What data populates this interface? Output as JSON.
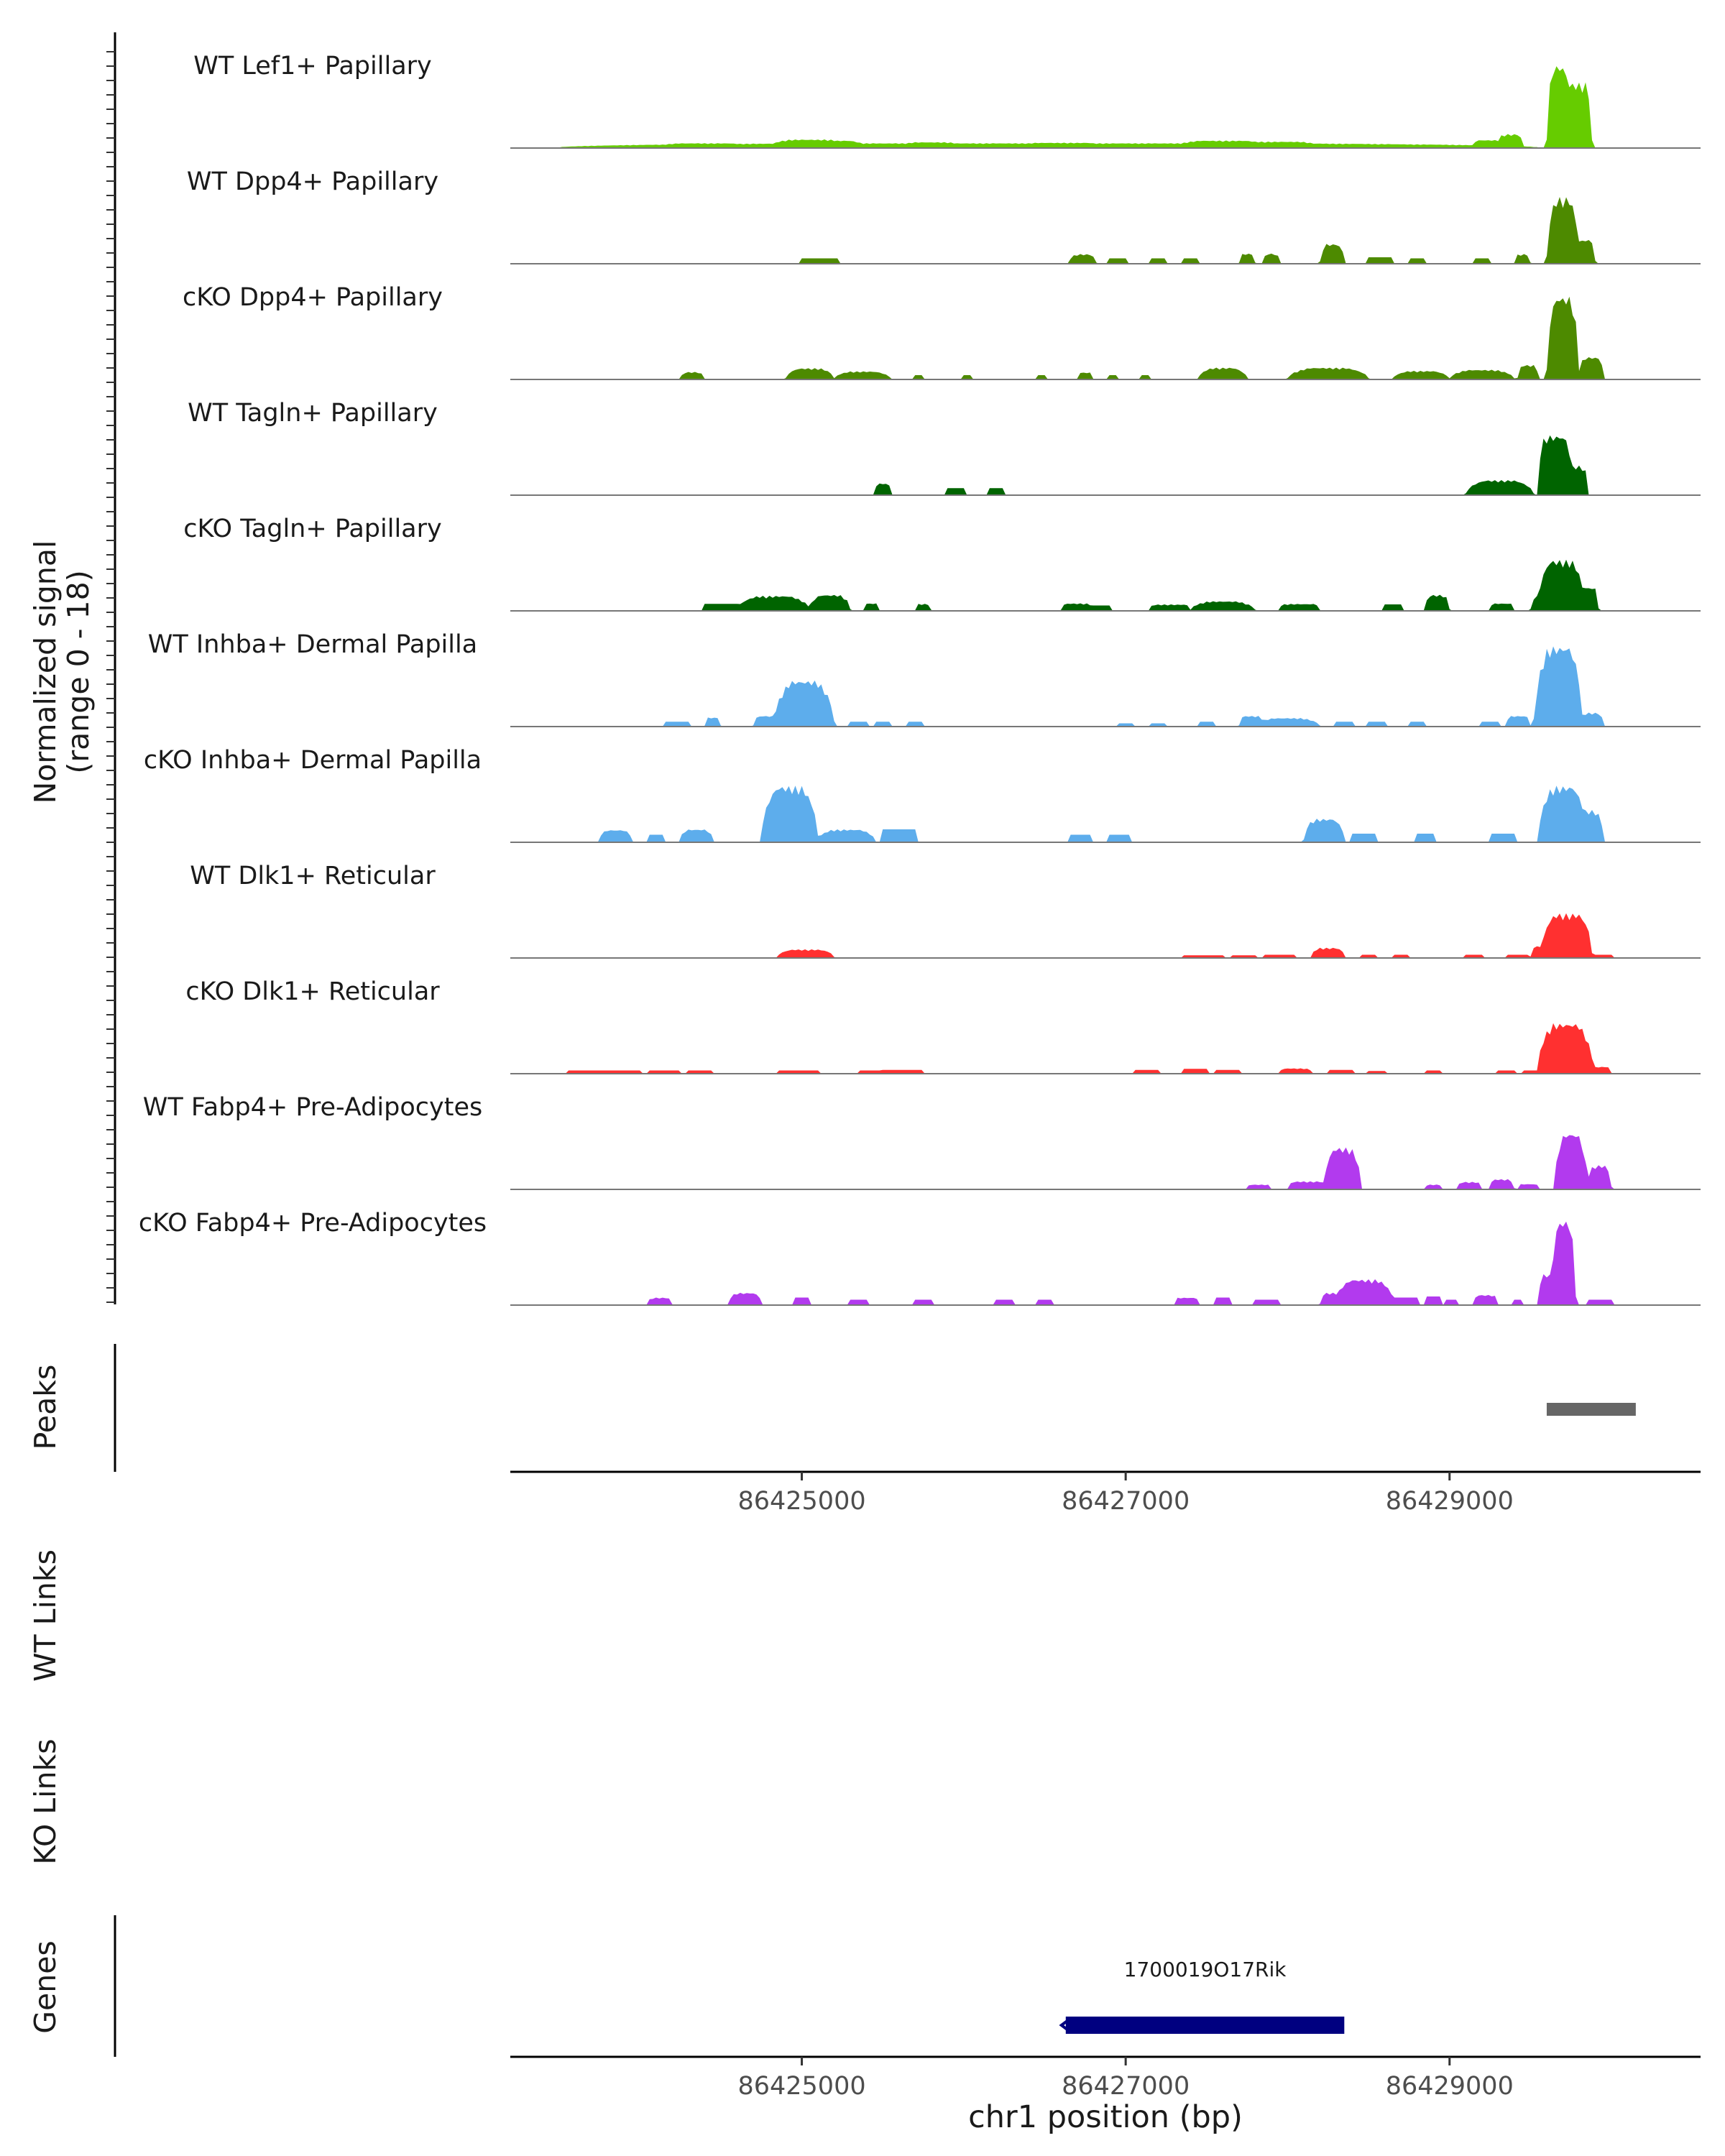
{
  "chart_data": {
    "type": "area",
    "title": "",
    "signal_ylabel_line1": "Normalized signal",
    "signal_ylabel_line2": "(range 0 - 18)",
    "ylim": [
      0,
      18
    ],
    "xlabel": "chr1 position (bp)",
    "xlim": [
      86423200,
      86430550
    ],
    "x_ticks": [
      86425000,
      86427000,
      86429000
    ],
    "x_tick_labels": [
      "86425000",
      "86427000",
      "86429000"
    ],
    "tracks": [
      {
        "name": "WT Lef1+ Papillary",
        "color": "#66CC00",
        "features": [
          [
            86423500,
            86429550,
            0.9,
            0.5
          ],
          [
            86424100,
            86424700,
            0.9,
            0.4
          ],
          [
            86424800,
            86425300,
            1.6,
            0.5
          ],
          [
            86425000,
            86425400,
            1.4,
            0.5
          ],
          [
            86425600,
            86426000,
            1.1,
            0.4
          ],
          [
            86426300,
            86426900,
            1.0,
            0.4
          ],
          [
            86427300,
            86427900,
            1.4,
            0.5
          ],
          [
            86427700,
            86428200,
            1.2,
            0.4
          ],
          [
            86429150,
            86429350,
            1.5,
            0.2
          ],
          [
            86429300,
            86429450,
            2.6,
            0.3
          ],
          [
            86429600,
            86429750,
            15.5,
            0.55
          ],
          [
            86429700,
            86429880,
            12.2,
            0.3
          ]
        ]
      },
      {
        "name": "WT Dpp4+ Papillary",
        "color": "#4D8A00",
        "features": [
          [
            86425000,
            86425220,
            1.0,
            0.0
          ],
          [
            86426650,
            86426820,
            1.8,
            0.5
          ],
          [
            86426900,
            86427000,
            1.0,
            0.0
          ],
          [
            86427150,
            86427250,
            1.0,
            0.0
          ],
          [
            86427350,
            86427450,
            1.0,
            0.0
          ],
          [
            86427700,
            86427800,
            1.9,
            0.4
          ],
          [
            86427850,
            86427950,
            1.9,
            0.4
          ],
          [
            86428200,
            86428350,
            3.7,
            0.5
          ],
          [
            86428500,
            86428650,
            1.2,
            0.0
          ],
          [
            86428750,
            86428850,
            1.0,
            0.0
          ],
          [
            86429150,
            86429250,
            1.0,
            0.0
          ],
          [
            86429400,
            86429500,
            1.8,
            0.4
          ],
          [
            86429600,
            86429800,
            12.4,
            0.6
          ],
          [
            86429780,
            86429900,
            4.5,
            0.3
          ]
        ]
      },
      {
        "name": "cKO Dpp4+ Papillary",
        "color": "#4D8A00",
        "features": [
          [
            86424250,
            86424400,
            1.4,
            0.5
          ],
          [
            86424900,
            86425200,
            2.1,
            0.6
          ],
          [
            86425200,
            86425550,
            1.5,
            0.6
          ],
          [
            86425700,
            86425750,
            0.8,
            0.0
          ],
          [
            86426000,
            86426050,
            0.8,
            0.0
          ],
          [
            86426450,
            86426500,
            0.8,
            0.0
          ],
          [
            86426700,
            86426800,
            1.3,
            0.3
          ],
          [
            86426900,
            86426950,
            0.8,
            0.0
          ],
          [
            86427100,
            86427150,
            0.8,
            0.0
          ],
          [
            86427450,
            86427750,
            2.2,
            0.6
          ],
          [
            86428000,
            86428500,
            2.2,
            0.6
          ],
          [
            86428650,
            86429000,
            1.6,
            0.6
          ],
          [
            86429000,
            86429400,
            1.8,
            0.6
          ],
          [
            86429420,
            86429550,
            2.7,
            0.4
          ],
          [
            86429600,
            86429800,
            15.5,
            0.55
          ],
          [
            86429800,
            86429950,
            4.2,
            0.4
          ]
        ]
      },
      {
        "name": "WT Tagln+ Papillary",
        "color": "#006400",
        "features": [
          [
            86425450,
            86425550,
            2.2,
            0.3
          ],
          [
            86425900,
            86426000,
            1.3,
            0.0
          ],
          [
            86426150,
            86426250,
            1.3,
            0.0
          ],
          [
            86429100,
            86429520,
            2.8,
            0.6
          ],
          [
            86429550,
            86429750,
            11.2,
            0.3
          ],
          [
            86429650,
            86429850,
            5.5,
            0.2
          ]
        ]
      },
      {
        "name": "cKO Tagln+ Papillary",
        "color": "#006400",
        "features": [
          [
            86424400,
            86424600,
            1.3,
            0.0
          ],
          [
            86424600,
            86425050,
            2.8,
            0.6
          ],
          [
            86425050,
            86425300,
            3.0,
            0.5
          ],
          [
            86425380,
            86425480,
            1.4,
            0.2
          ],
          [
            86425700,
            86425800,
            1.3,
            0.2
          ],
          [
            86426600,
            86426800,
            1.4,
            0.3
          ],
          [
            86426800,
            86426900,
            1.0,
            0.0
          ],
          [
            86427150,
            86427400,
            1.2,
            0.2
          ],
          [
            86427400,
            86427800,
            1.8,
            0.6
          ],
          [
            86427950,
            86428200,
            1.3,
            0.2
          ],
          [
            86428600,
            86428700,
            1.2,
            0.0
          ],
          [
            86428850,
            86429000,
            3.0,
            0.4
          ],
          [
            86429250,
            86429400,
            1.4,
            0.2
          ],
          [
            86429500,
            86429650,
            2.8,
            0.4
          ],
          [
            86429550,
            86429830,
            9.5,
            0.5
          ],
          [
            86429800,
            86429920,
            4.4,
            0.3
          ]
        ]
      },
      {
        "name": "WT Inhba+ Dermal Papilla",
        "color": "#5DADEC",
        "features": [
          [
            86424150,
            86424300,
            0.9,
            0.0
          ],
          [
            86424400,
            86424500,
            1.7,
            0.3
          ],
          [
            86424700,
            86424900,
            2.0,
            0.3
          ],
          [
            86424830,
            86425200,
            8.6,
            0.6
          ],
          [
            86425300,
            86425400,
            0.9,
            0.0
          ],
          [
            86425450,
            86425550,
            0.9,
            0.0
          ],
          [
            86425650,
            86425750,
            0.9,
            0.0
          ],
          [
            86426950,
            86427050,
            0.6,
            0.0
          ],
          [
            86427150,
            86427250,
            0.6,
            0.0
          ],
          [
            86427450,
            86427550,
            0.9,
            0.0
          ],
          [
            86427700,
            86427850,
            2.0,
            0.3
          ],
          [
            86427800,
            86428200,
            1.6,
            0.6
          ],
          [
            86428300,
            86428400,
            0.9,
            0.0
          ],
          [
            86428500,
            86428600,
            0.9,
            0.0
          ],
          [
            86428750,
            86428850,
            0.9,
            0.0
          ],
          [
            86429200,
            86429300,
            0.9,
            0.0
          ],
          [
            86429350,
            86429500,
            2.0,
            0.3
          ],
          [
            86429500,
            86429750,
            2.0,
            0.4
          ],
          [
            86429530,
            86429820,
            15.0,
            0.55
          ],
          [
            86429800,
            86429950,
            2.6,
            0.4
          ]
        ]
      },
      {
        "name": "cKO Inhba+ Dermal Papilla",
        "color": "#5DADEC",
        "features": [
          [
            86423750,
            86423950,
            2.3,
            0.4
          ],
          [
            86424050,
            86424150,
            1.4,
            0.0
          ],
          [
            86424250,
            86424450,
            2.4,
            0.4
          ],
          [
            86424750,
            86425100,
            10.5,
            0.6
          ],
          [
            86425100,
            86425450,
            2.4,
            0.5
          ],
          [
            86425500,
            86425700,
            2.4,
            0.0
          ],
          [
            86426650,
            86426780,
            1.4,
            0.0
          ],
          [
            86426900,
            86427020,
            1.4,
            0.0
          ],
          [
            86428100,
            86428350,
            4.4,
            0.5
          ],
          [
            86428400,
            86428550,
            1.6,
            0.0
          ],
          [
            86428800,
            86428900,
            1.6,
            0.0
          ],
          [
            86429250,
            86429400,
            1.6,
            0.0
          ],
          [
            86429550,
            86429850,
            10.5,
            0.6
          ],
          [
            86429780,
            86429950,
            6.0,
            0.5
          ]
        ]
      },
      {
        "name": "WT Dlk1+ Reticular",
        "color": "#FF3030",
        "features": [
          [
            86424850,
            86425200,
            1.6,
            0.5
          ],
          [
            86427350,
            86427600,
            0.5,
            0.0
          ],
          [
            86427650,
            86427800,
            0.5,
            0.0
          ],
          [
            86427850,
            86428050,
            0.6,
            0.0
          ],
          [
            86428150,
            86428350,
            1.9,
            0.4
          ],
          [
            86428450,
            86428550,
            0.6,
            0.0
          ],
          [
            86428650,
            86428750,
            0.6,
            0.0
          ],
          [
            86429100,
            86429200,
            0.6,
            0.0
          ],
          [
            86429350,
            86429480,
            0.6,
            0.0
          ],
          [
            86429500,
            86429620,
            2.2,
            0.3
          ],
          [
            86429570,
            86429880,
            8.3,
            0.5
          ],
          [
            86429900,
            86430000,
            0.6,
            0.0
          ]
        ]
      },
      {
        "name": "cKO Dlk1+ Reticular",
        "color": "#FF3030",
        "features": [
          [
            86423550,
            86423750,
            0.6,
            0.0
          ],
          [
            86423750,
            86424000,
            0.6,
            0.0
          ],
          [
            86424050,
            86424250,
            0.6,
            0.0
          ],
          [
            86424300,
            86424450,
            0.6,
            0.0
          ],
          [
            86424850,
            86425100,
            0.6,
            0.0
          ],
          [
            86425350,
            86425500,
            0.6,
            0.0
          ],
          [
            86425500,
            86425750,
            0.7,
            0.0
          ],
          [
            86427050,
            86427200,
            0.7,
            0.0
          ],
          [
            86427350,
            86427500,
            0.9,
            0.0
          ],
          [
            86427550,
            86427700,
            0.7,
            0.0
          ],
          [
            86427950,
            86428150,
            1.0,
            0.3
          ],
          [
            86428250,
            86428400,
            0.7,
            0.0
          ],
          [
            86428500,
            86428600,
            0.5,
            0.0
          ],
          [
            86428850,
            86428950,
            0.6,
            0.0
          ],
          [
            86429300,
            86429400,
            0.6,
            0.0
          ],
          [
            86429450,
            86429600,
            0.6,
            0.0
          ],
          [
            86429650,
            86429800,
            1.0,
            0.3
          ],
          [
            86429800,
            86429900,
            3.3,
            0.3
          ],
          [
            86429550,
            86429880,
            9.4,
            0.5
          ],
          [
            86429880,
            86430000,
            1.3,
            0.3
          ]
        ]
      },
      {
        "name": "WT Fabp4+ Pre-Adipocytes",
        "color": "#B23AEE",
        "features": [
          [
            86427750,
            86427900,
            0.9,
            0.2
          ],
          [
            86428000,
            86428250,
            1.5,
            0.3
          ],
          [
            86428230,
            86428450,
            7.8,
            0.5
          ],
          [
            86428850,
            86428950,
            0.9,
            0.2
          ],
          [
            86429050,
            86429200,
            1.4,
            0.3
          ],
          [
            86429250,
            86429400,
            1.9,
            0.3
          ],
          [
            86429420,
            86429550,
            1.0,
            0.2
          ],
          [
            86429650,
            86429850,
            10.5,
            0.6
          ],
          [
            86429850,
            86430000,
            4.5,
            0.5
          ]
        ]
      },
      {
        "name": "cKO Fabp4+ Pre-Adipocytes",
        "color": "#B23AEE",
        "features": [
          [
            86424050,
            86424200,
            1.4,
            0.3
          ],
          [
            86424550,
            86424750,
            2.3,
            0.4
          ],
          [
            86424950,
            86425050,
            1.4,
            0.0
          ],
          [
            86425300,
            86425400,
            1.0,
            0.0
          ],
          [
            86425700,
            86425800,
            1.0,
            0.0
          ],
          [
            86426200,
            86426300,
            1.0,
            0.0
          ],
          [
            86426450,
            86426550,
            1.0,
            0.0
          ],
          [
            86427300,
            86427450,
            1.4,
            0.2
          ],
          [
            86427550,
            86427650,
            1.4,
            0.0
          ],
          [
            86427800,
            86427950,
            1.0,
            0.0
          ],
          [
            86428200,
            86428350,
            2.3,
            0.4
          ],
          [
            86428300,
            86428650,
            4.8,
            0.5
          ],
          [
            86428600,
            86428800,
            1.4,
            0.0
          ],
          [
            86428850,
            86428950,
            1.6,
            0.0
          ],
          [
            86428980,
            86429050,
            1.0,
            0.0
          ],
          [
            86429150,
            86429300,
            1.9,
            0.3
          ],
          [
            86429400,
            86429450,
            1.0,
            0.0
          ],
          [
            86429550,
            86429700,
            5.8,
            0.3
          ],
          [
            86429630,
            86429780,
            15.8,
            0.55
          ],
          [
            86429850,
            86430000,
            1.0,
            0.0
          ]
        ]
      }
    ],
    "peaks_label": "Peaks",
    "peaks": [
      {
        "start": 86429600,
        "end": 86430150
      }
    ],
    "wt_links_label": "WT Links",
    "ko_links_label": "KO Links",
    "genes_label": "Genes",
    "genes": [
      {
        "name": "1700019O17Rik",
        "start": 86426630,
        "end": 86428350,
        "strand": "-"
      }
    ]
  }
}
